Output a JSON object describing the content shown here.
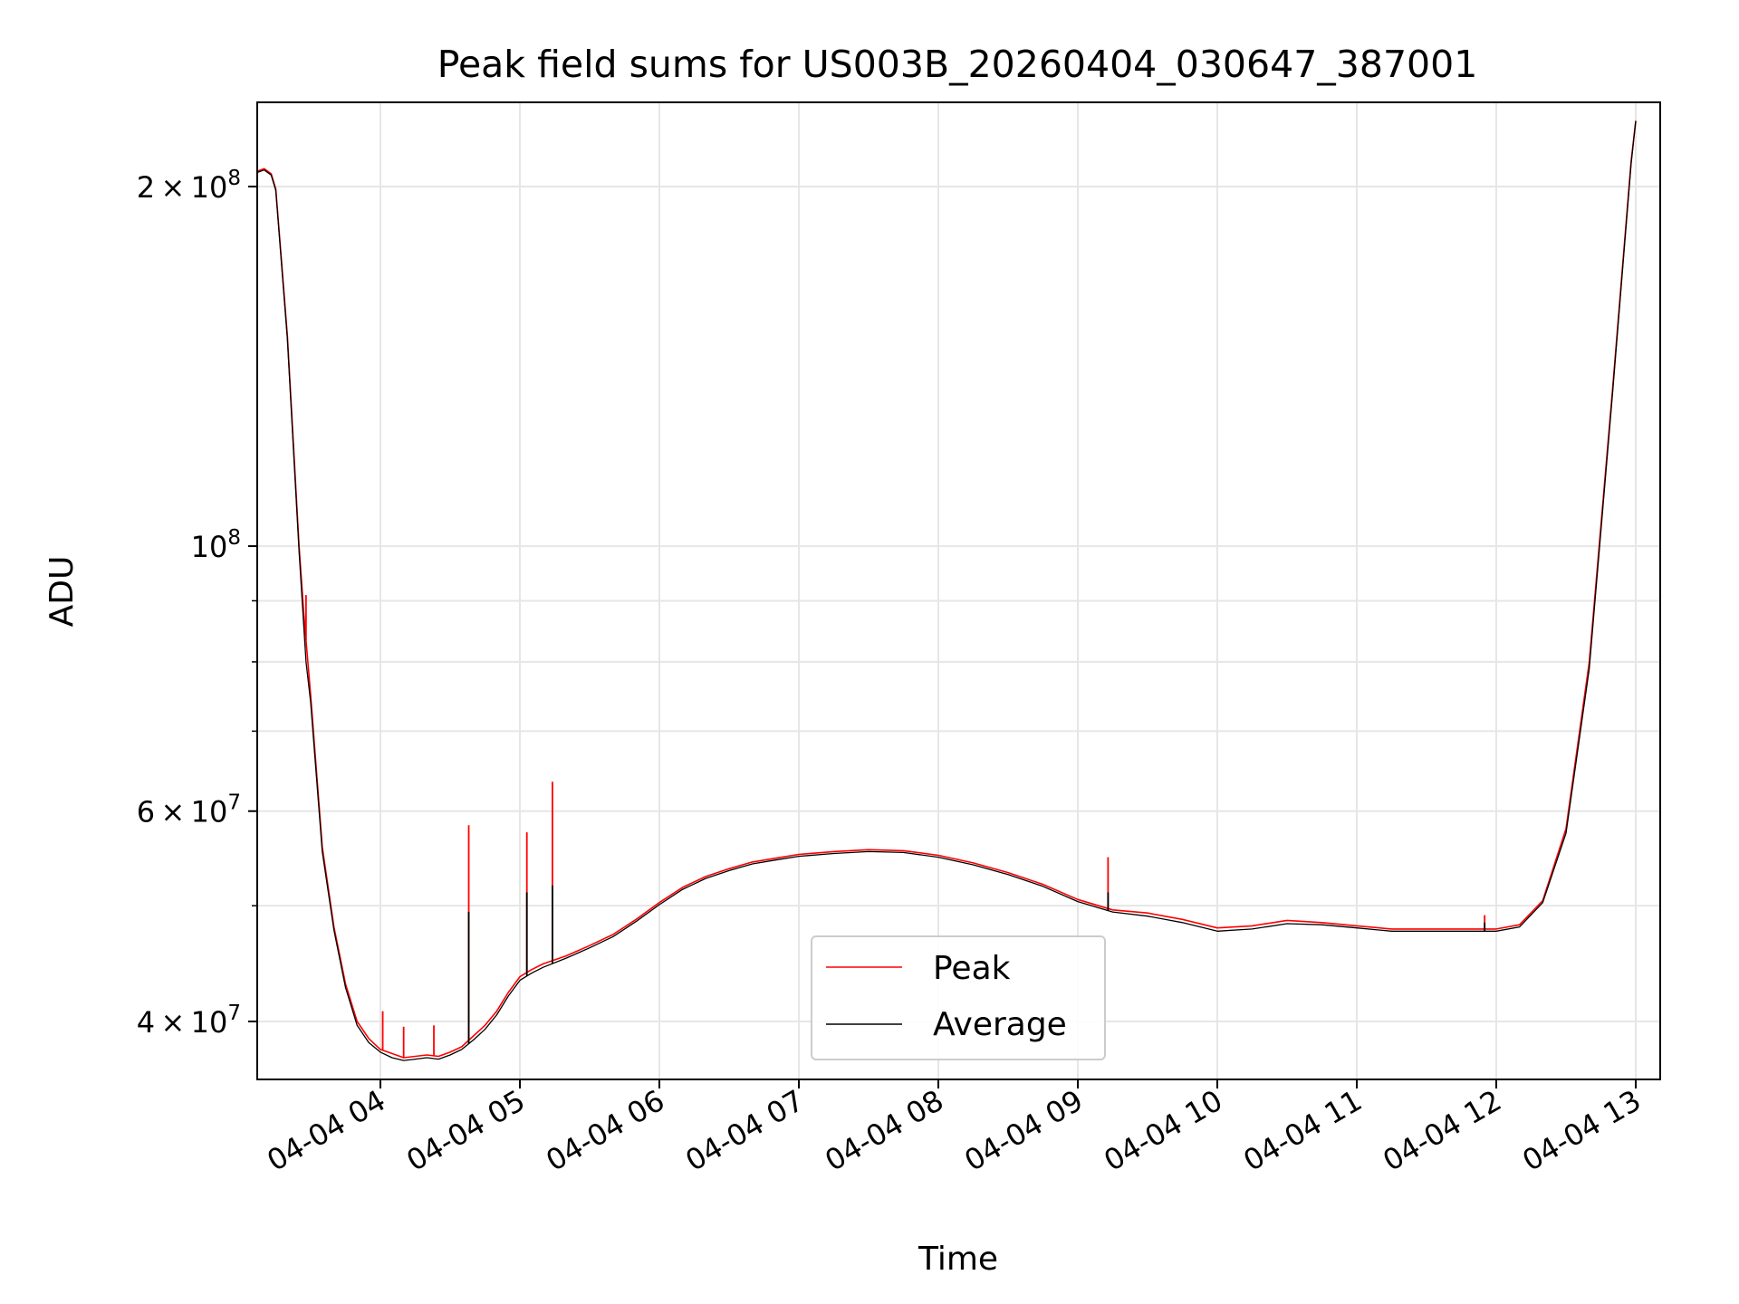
{
  "chart_data": {
    "type": "line",
    "title": "Peak field sums for US003B_20260404_030647_387001",
    "xlabel": "Time",
    "ylabel": "ADU",
    "y_scale": "log",
    "grid": true,
    "legend_position": "lower center",
    "x_tick_labels": [
      "04-04 04",
      "04-04 05",
      "04-04 06",
      "04-04 07",
      "04-04 08",
      "04-04 09",
      "04-04 10",
      "04-04 11",
      "04-04 12",
      "04-04 13"
    ],
    "y_major_ticks": [
      {
        "value": 40000000,
        "mantissa": "4",
        "exponent": "7"
      },
      {
        "value": 60000000,
        "mantissa": "6",
        "exponent": "7"
      },
      {
        "value": 100000000,
        "mantissa": "",
        "exponent": "8"
      },
      {
        "value": 200000000,
        "mantissa": "2",
        "exponent": "8"
      }
    ],
    "x_range": [
      "2026-04-04 03:07",
      "2026-04-04 13:03"
    ],
    "y_range": [
      36800000,
      227000000
    ],
    "x_unit": "2026-04-04 (HH:MM)",
    "series": [
      {
        "name": "Peak",
        "color": "#ff0000",
        "points": [
          [
            "03:07",
            206000000
          ],
          [
            "03:10",
            207000000
          ],
          [
            "03:13",
            205000000
          ],
          [
            "03:15",
            199000000
          ],
          [
            "03:20",
            150000000
          ],
          [
            "03:25",
            100000000
          ],
          [
            "03:27",
            88000000
          ],
          [
            "03:30",
            75000000
          ],
          [
            "03:35",
            56000000
          ],
          [
            "03:40",
            48000000
          ],
          [
            "03:45",
            43000000
          ],
          [
            "03:50",
            40000000
          ],
          [
            "03:55",
            38700000
          ],
          [
            "04:00",
            37900000
          ],
          [
            "04:05",
            37600000
          ],
          [
            "04:10",
            37300000
          ],
          [
            "04:15",
            37400000
          ],
          [
            "04:20",
            37500000
          ],
          [
            "04:25",
            37400000
          ],
          [
            "04:30",
            37700000
          ],
          [
            "04:35",
            38100000
          ],
          [
            "04:40",
            38900000
          ],
          [
            "04:45",
            39700000
          ],
          [
            "04:50",
            40800000
          ],
          [
            "04:55",
            42300000
          ],
          [
            "05:00",
            43600000
          ],
          [
            "05:05",
            44200000
          ],
          [
            "05:10",
            44700000
          ],
          [
            "05:20",
            45400000
          ],
          [
            "05:30",
            46300000
          ],
          [
            "05:40",
            47300000
          ],
          [
            "05:50",
            48700000
          ],
          [
            "06:00",
            50300000
          ],
          [
            "06:10",
            51800000
          ],
          [
            "06:20",
            52900000
          ],
          [
            "06:30",
            53700000
          ],
          [
            "06:40",
            54400000
          ],
          [
            "06:50",
            54800000
          ],
          [
            "07:00",
            55200000
          ],
          [
            "07:15",
            55500000
          ],
          [
            "07:30",
            55700000
          ],
          [
            "07:45",
            55600000
          ],
          [
            "08:00",
            55100000
          ],
          [
            "08:15",
            54300000
          ],
          [
            "08:30",
            53300000
          ],
          [
            "08:45",
            52100000
          ],
          [
            "09:00",
            50600000
          ],
          [
            "09:15",
            49600000
          ],
          [
            "09:30",
            49300000
          ],
          [
            "09:45",
            48700000
          ],
          [
            "10:00",
            47900000
          ],
          [
            "10:15",
            48100000
          ],
          [
            "10:30",
            48600000
          ],
          [
            "10:45",
            48400000
          ],
          [
            "11:00",
            48100000
          ],
          [
            "11:15",
            47800000
          ],
          [
            "11:30",
            47800000
          ],
          [
            "11:45",
            47800000
          ],
          [
            "12:00",
            47800000
          ],
          [
            "12:10",
            48200000
          ],
          [
            "12:20",
            50500000
          ],
          [
            "12:30",
            58000000
          ],
          [
            "12:40",
            80000000
          ],
          [
            "12:50",
            135000000
          ],
          [
            "12:58",
            210000000
          ],
          [
            "13:00",
            227000000
          ]
        ],
        "spikes": [
          [
            "03:28",
            91000000
          ],
          [
            "04:01",
            40800000
          ],
          [
            "04:10",
            39600000
          ],
          [
            "04:23",
            39700000
          ],
          [
            "04:38",
            58400000
          ],
          [
            "05:03",
            57600000
          ],
          [
            "05:14",
            63500000
          ],
          [
            "09:13",
            54900000
          ],
          [
            "11:55",
            49100000
          ]
        ]
      },
      {
        "name": "Average",
        "color": "#000000",
        "points": [
          [
            "03:07",
            205500000
          ],
          [
            "03:10",
            206500000
          ],
          [
            "03:13",
            204500000
          ],
          [
            "03:15",
            198500000
          ],
          [
            "03:20",
            149000000
          ],
          [
            "03:25",
            99000000
          ],
          [
            "03:28",
            80000000
          ],
          [
            "03:30",
            74000000
          ],
          [
            "03:35",
            55500000
          ],
          [
            "03:40",
            47700000
          ],
          [
            "03:45",
            42700000
          ],
          [
            "03:50",
            39700000
          ],
          [
            "03:55",
            38400000
          ],
          [
            "04:00",
            37700000
          ],
          [
            "04:05",
            37300000
          ],
          [
            "04:10",
            37100000
          ],
          [
            "04:15",
            37200000
          ],
          [
            "04:20",
            37300000
          ],
          [
            "04:25",
            37200000
          ],
          [
            "04:30",
            37500000
          ],
          [
            "04:35",
            37900000
          ],
          [
            "04:40",
            38600000
          ],
          [
            "04:45",
            39400000
          ],
          [
            "04:50",
            40500000
          ],
          [
            "04:55",
            42000000
          ],
          [
            "05:00",
            43300000
          ],
          [
            "05:05",
            43900000
          ],
          [
            "05:10",
            44400000
          ],
          [
            "05:20",
            45200000
          ],
          [
            "05:30",
            46100000
          ],
          [
            "05:40",
            47100000
          ],
          [
            "05:50",
            48500000
          ],
          [
            "06:00",
            50100000
          ],
          [
            "06:10",
            51600000
          ],
          [
            "06:20",
            52700000
          ],
          [
            "06:30",
            53500000
          ],
          [
            "06:40",
            54200000
          ],
          [
            "06:50",
            54600000
          ],
          [
            "07:00",
            55000000
          ],
          [
            "07:15",
            55300000
          ],
          [
            "07:30",
            55500000
          ],
          [
            "07:45",
            55400000
          ],
          [
            "08:00",
            54900000
          ],
          [
            "08:15",
            54100000
          ],
          [
            "08:30",
            53100000
          ],
          [
            "08:45",
            51900000
          ],
          [
            "09:00",
            50400000
          ],
          [
            "09:15",
            49400000
          ],
          [
            "09:30",
            49000000
          ],
          [
            "09:45",
            48400000
          ],
          [
            "10:00",
            47600000
          ],
          [
            "10:15",
            47800000
          ],
          [
            "10:30",
            48300000
          ],
          [
            "10:45",
            48200000
          ],
          [
            "11:00",
            47900000
          ],
          [
            "11:15",
            47600000
          ],
          [
            "11:30",
            47600000
          ],
          [
            "11:45",
            47600000
          ],
          [
            "12:00",
            47600000
          ],
          [
            "12:10",
            48000000
          ],
          [
            "12:20",
            50300000
          ],
          [
            "12:30",
            57500000
          ],
          [
            "12:40",
            79000000
          ],
          [
            "12:50",
            134000000
          ],
          [
            "12:58",
            209000000
          ],
          [
            "13:00",
            227000000
          ]
        ],
        "spikes": [
          [
            "04:38",
            49400000
          ],
          [
            "05:03",
            51300000
          ],
          [
            "05:14",
            52000000
          ],
          [
            "09:13",
            51300000
          ],
          [
            "11:55",
            48400000
          ]
        ]
      }
    ]
  }
}
